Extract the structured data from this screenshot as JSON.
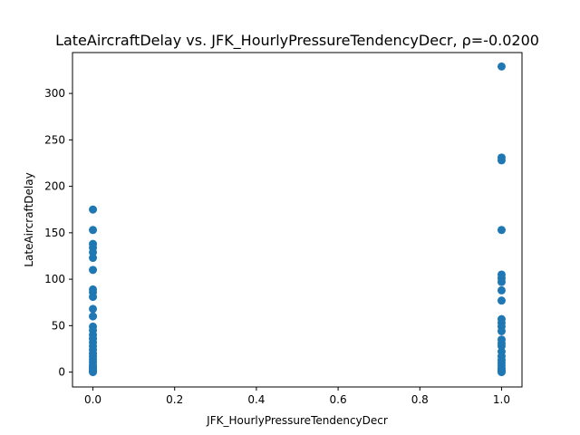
{
  "chart_data": {
    "type": "scatter",
    "title": "LateAircraftDelay vs. JFK_HourlyPressureTendencyDecr, ρ=-0.0200",
    "xlabel": "JFK_HourlyPressureTendencyDecr",
    "ylabel": "LateAircraftDelay",
    "xlim": [
      -0.05,
      1.05
    ],
    "ylim": [
      -16,
      344
    ],
    "xticks": [
      0.0,
      0.2,
      0.4,
      0.6,
      0.8,
      1.0
    ],
    "xtick_labels": [
      "0.0",
      "0.2",
      "0.4",
      "0.6",
      "0.8",
      "1.0"
    ],
    "yticks": [
      0,
      50,
      100,
      150,
      200,
      250,
      300
    ],
    "ytick_labels": [
      "0",
      "50",
      "100",
      "150",
      "200",
      "250",
      "300"
    ],
    "grid": false,
    "marker_color": "#1f77b4",
    "points": [
      {
        "x": 0,
        "y": 175
      },
      {
        "x": 0,
        "y": 153
      },
      {
        "x": 0,
        "y": 138
      },
      {
        "x": 0,
        "y": 134
      },
      {
        "x": 0,
        "y": 129
      },
      {
        "x": 0,
        "y": 123
      },
      {
        "x": 0,
        "y": 110
      },
      {
        "x": 0,
        "y": 89
      },
      {
        "x": 0,
        "y": 86
      },
      {
        "x": 0,
        "y": 81
      },
      {
        "x": 0,
        "y": 68
      },
      {
        "x": 0,
        "y": 60
      },
      {
        "x": 0,
        "y": 49
      },
      {
        "x": 0,
        "y": 45
      },
      {
        "x": 0,
        "y": 40
      },
      {
        "x": 0,
        "y": 36
      },
      {
        "x": 0,
        "y": 32
      },
      {
        "x": 0,
        "y": 28
      },
      {
        "x": 0,
        "y": 24
      },
      {
        "x": 0,
        "y": 20
      },
      {
        "x": 0,
        "y": 17
      },
      {
        "x": 0,
        "y": 14
      },
      {
        "x": 0,
        "y": 11
      },
      {
        "x": 0,
        "y": 8
      },
      {
        "x": 0,
        "y": 6
      },
      {
        "x": 0,
        "y": 4
      },
      {
        "x": 0,
        "y": 2
      },
      {
        "x": 0,
        "y": 1
      },
      {
        "x": 0,
        "y": 0
      },
      {
        "x": 1,
        "y": 329
      },
      {
        "x": 1,
        "y": 231
      },
      {
        "x": 1,
        "y": 228
      },
      {
        "x": 1,
        "y": 153
      },
      {
        "x": 1,
        "y": 105
      },
      {
        "x": 1,
        "y": 101
      },
      {
        "x": 1,
        "y": 97
      },
      {
        "x": 1,
        "y": 88
      },
      {
        "x": 1,
        "y": 77
      },
      {
        "x": 1,
        "y": 57
      },
      {
        "x": 1,
        "y": 53
      },
      {
        "x": 1,
        "y": 49
      },
      {
        "x": 1,
        "y": 44
      },
      {
        "x": 1,
        "y": 35
      },
      {
        "x": 1,
        "y": 31
      },
      {
        "x": 1,
        "y": 28
      },
      {
        "x": 1,
        "y": 22
      },
      {
        "x": 1,
        "y": 17
      },
      {
        "x": 1,
        "y": 13
      },
      {
        "x": 1,
        "y": 10
      },
      {
        "x": 1,
        "y": 7
      },
      {
        "x": 1,
        "y": 4
      },
      {
        "x": 1,
        "y": 2
      },
      {
        "x": 1,
        "y": 1
      },
      {
        "x": 1,
        "y": 0
      }
    ]
  }
}
